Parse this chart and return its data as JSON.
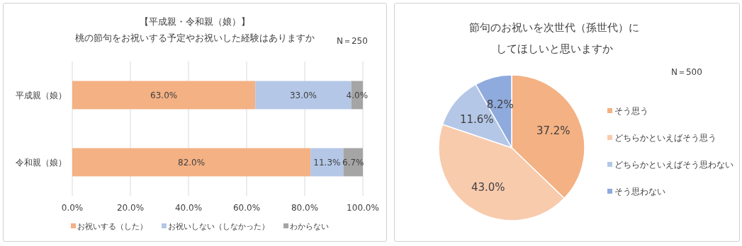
{
  "chart_data": [
    {
      "type": "bar",
      "orientation": "horizontal",
      "stacked": true,
      "title": "【平成親・令和親（娘）】",
      "subtitle": "桃の節句をお祝いする予定やお祝いした経験はありますか",
      "categories": [
        "平成親（娘）",
        "令和親（娘）"
      ],
      "series": [
        {
          "name": "お祝いする（した）",
          "color": "#f4b183",
          "values": [
            63.0,
            82.0
          ],
          "value_labels": [
            "63.0%",
            "82.0%"
          ]
        },
        {
          "name": "お祝いしない（しなかった）",
          "color": "#b4c7e7",
          "values": [
            33.0,
            11.3
          ],
          "value_labels": [
            "33.0%",
            "11.3%"
          ]
        },
        {
          "name": "わからない",
          "color": "#a5a5a5",
          "values": [
            4.0,
            6.7
          ],
          "value_labels": [
            "4.0%",
            "6.7%"
          ]
        }
      ],
      "xlim": [
        0,
        100
      ],
      "xticks": [
        {
          "value": 0,
          "label": "0.0%"
        },
        {
          "value": 20,
          "label": "20.0%"
        },
        {
          "value": 40,
          "label": "40.0%"
        },
        {
          "value": 60,
          "label": "60.0%"
        },
        {
          "value": 80,
          "label": "80.0%"
        },
        {
          "value": 100,
          "label": "100.0%"
        }
      ],
      "grid": "x",
      "legend": "bottom",
      "annotations": [
        "N＝250"
      ]
    },
    {
      "type": "pie",
      "title": "節句のお祝いを次世代（孫世代）にしてほしいと思いますか",
      "categories": [
        "そう思う",
        "どちらかといえばそう思う",
        "どちらかといえばそう思わない",
        "そう思わない"
      ],
      "values": [
        37.2,
        43.0,
        11.6,
        8.2
      ],
      "colors": [
        "#f4b183",
        "#f8cbad",
        "#b4c7e7",
        "#8faadc"
      ],
      "value_labels": [
        "37.2%",
        "43.0%",
        "11.6%",
        "8.2%"
      ],
      "legend": "right",
      "annotations": [
        "N＝500"
      ]
    }
  ]
}
